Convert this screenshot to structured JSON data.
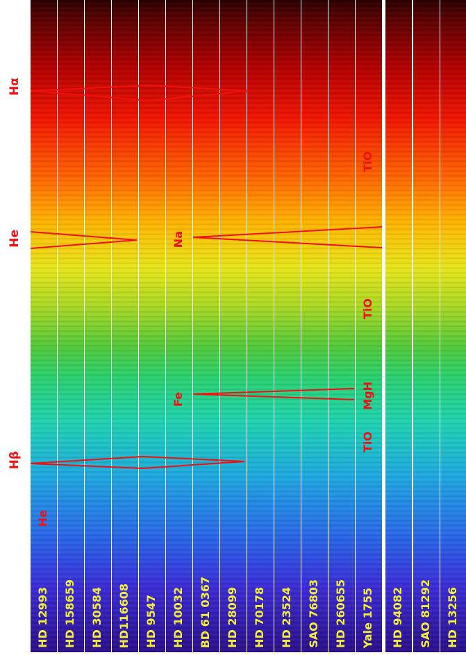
{
  "colors": {
    "label_text": "#f4ee3a",
    "line_marker": "#f01010",
    "background": "#ffffff"
  },
  "stars": [
    {
      "name": "HD 12993"
    },
    {
      "name": "HD 158659"
    },
    {
      "name": "HD 30584"
    },
    {
      "name": "HD116608"
    },
    {
      "name": "HD 9547"
    },
    {
      "name": "HD 10032"
    },
    {
      "name": "BD 61 0367"
    },
    {
      "name": "HD 28099"
    },
    {
      "name": "HD 70178"
    },
    {
      "name": "HD 23524"
    },
    {
      "name": "SAO 76803"
    },
    {
      "name": "HD 260655"
    },
    {
      "name": "Yale 1755"
    },
    {
      "name": "HD 94082"
    },
    {
      "name": "SAO 81292"
    },
    {
      "name": "HD 13256"
    }
  ],
  "side_labels": {
    "h_alpha": "Hα",
    "he_upper": "He",
    "h_beta": "Hβ"
  },
  "line_labels": {
    "he_lower": "He",
    "na": "Na",
    "fe": "Fe",
    "tio_1": "TiO",
    "tio_2": "TiO",
    "mgh": "MgH",
    "tio_3": "TiO"
  }
}
